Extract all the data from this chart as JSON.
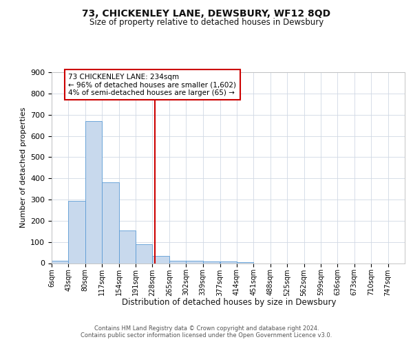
{
  "title": "73, CHICKENLEY LANE, DEWSBURY, WF12 8QD",
  "subtitle": "Size of property relative to detached houses in Dewsbury",
  "xlabel": "Distribution of detached houses by size in Dewsbury",
  "ylabel": "Number of detached properties",
  "bin_labels": [
    "6sqm",
    "43sqm",
    "80sqm",
    "117sqm",
    "154sqm",
    "191sqm",
    "228sqm",
    "265sqm",
    "302sqm",
    "339sqm",
    "377sqm",
    "414sqm",
    "451sqm",
    "488sqm",
    "525sqm",
    "562sqm",
    "599sqm",
    "636sqm",
    "673sqm",
    "710sqm",
    "747sqm"
  ],
  "bin_edges": [
    6,
    43,
    80,
    117,
    154,
    191,
    228,
    265,
    302,
    339,
    377,
    414,
    451,
    488,
    525,
    562,
    599,
    636,
    673,
    710,
    747
  ],
  "values": [
    10,
    295,
    670,
    380,
    155,
    90,
    35,
    12,
    12,
    8,
    8,
    5,
    0,
    0,
    0,
    0,
    0,
    0,
    0,
    0,
    0
  ],
  "bar_color": "#c8d9ed",
  "bar_edgecolor": "#5b9bd5",
  "vline_x": 234,
  "vline_color": "#cc0000",
  "annotation_text": "73 CHICKENLEY LANE: 234sqm\n← 96% of detached houses are smaller (1,602)\n4% of semi-detached houses are larger (65) →",
  "annotation_box_color": "#ffffff",
  "annotation_box_edgecolor": "#cc0000",
  "ylim": [
    0,
    900
  ],
  "yticks": [
    0,
    100,
    200,
    300,
    400,
    500,
    600,
    700,
    800,
    900
  ],
  "footer_text": "Contains HM Land Registry data © Crown copyright and database right 2024.\nContains public sector information licensed under the Open Government Licence v3.0.",
  "bg_color": "#ffffff",
  "grid_color": "#d0d8e4",
  "title_fontsize": 10,
  "subtitle_fontsize": 8.5,
  "ylabel_fontsize": 8,
  "xlabel_fontsize": 8.5,
  "ytick_fontsize": 8,
  "xtick_fontsize": 7,
  "annotation_fontsize": 7.5,
  "footer_fontsize": 6
}
